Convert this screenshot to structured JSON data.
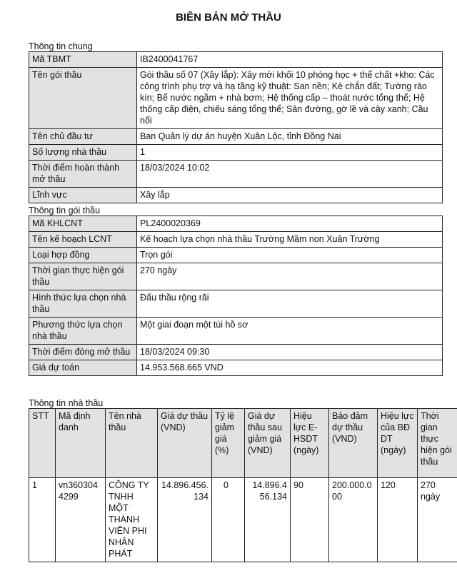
{
  "title": "BIÊN BẢN MỞ THẦU",
  "general": {
    "heading": "Thông tin chung",
    "rows": [
      {
        "label": "Mã TBMT",
        "value": "IB2400041767"
      },
      {
        "label": "Tên gói thầu",
        "value": "Gói thầu số 07 (Xây lắp): Xây mới khối 10 phòng học + thể chất +kho: Các công trình phụ trợ và hạ tầng kỹ thuật: San nền; Kè chắn đất; Tường rào kín; Bể nước ngầm + nhà bơm; Hệ thống cấp – thoát nước tổng thể; Hệ thống cấp điện, chiếu sáng tổng thể; Sân đường, gờ lề và cây xanh; Cầu nối"
      },
      {
        "label": "Tên chủ đầu tư",
        "value": "Ban Quản lý dự án huyện Xuân Lộc, tỉnh Đồng Nai"
      },
      {
        "label": "Số lượng nhà thầu",
        "value": "1"
      },
      {
        "label": "Thời điểm hoàn thành mở thầu",
        "value": "18/03/2024 10:02"
      },
      {
        "label": "Lĩnh vực",
        "value": "Xây lắp"
      }
    ]
  },
  "package": {
    "heading": "Thông tin gói thầu",
    "rows": [
      {
        "label": "Mã KHLCNT",
        "value": "PL2400020369"
      },
      {
        "label": "Tên kế hoạch LCNT",
        "value": "Kế hoạch lựa chọn nhà thầu Trường Mầm non Xuân Trường"
      },
      {
        "label": "Loại hợp đồng",
        "value": "Trọn gói"
      },
      {
        "label": "Thời gian thực hiện gói thầu",
        "value": "270 ngày"
      },
      {
        "label": "Hình thức lựa chọn nhà thầu",
        "value": "Đấu thầu rộng rãi"
      },
      {
        "label": "Phương thức lựa chọn nhà thầu",
        "value": "Một giai đoạn một túi hồ sơ"
      },
      {
        "label": "Thời điểm đóng mở thầu",
        "value": "18/03/2024 09:30"
      },
      {
        "label": "Giá dự toán",
        "value": "14.953.568.665 VND"
      }
    ]
  },
  "bidders": {
    "heading": "Thông tin nhà thầu",
    "columns": [
      "STT",
      "Mã định danh",
      "Tên nhà thầu",
      "Giá dự thầu (VND)",
      "Tỷ lệ giảm giá (%)",
      "Giá dự thầu sau giảm giá (VND)",
      "Hiệu lực E-HSDT (ngày)",
      "Bảo đảm dự thầu (VND)",
      "Hiệu lực của BĐ DT (ngày)",
      "Thời gian thực hiện gói thầu"
    ],
    "rows": [
      [
        "1",
        "vn3603044299",
        "CÔNG TY TNHH MỘT THÀNH VIÊN PHI NHÂN PHÁT",
        "14.896.456.134",
        "0",
        "14.896.456.134",
        "90",
        "200.000.000",
        "120",
        "270 ngày"
      ]
    ]
  }
}
